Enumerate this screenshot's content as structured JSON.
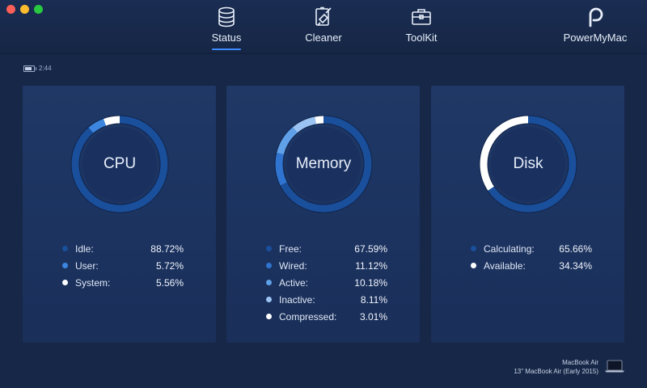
{
  "nav": {
    "tabs": [
      {
        "label": "Status",
        "icon": "database-icon"
      },
      {
        "label": "Cleaner",
        "icon": "broom-icon"
      },
      {
        "label": "ToolKit",
        "icon": "toolbox-icon"
      }
    ],
    "active_tab": "Status",
    "brand": "PowerMyMac"
  },
  "battery": {
    "time": "2:44",
    "level": 0.8
  },
  "cards": [
    {
      "title": "CPU",
      "items": [
        {
          "label": "Idle:",
          "value": "88.72%",
          "color": "#1a4f9c"
        },
        {
          "label": "User:",
          "value": "5.72%",
          "color": "#3d86e0"
        },
        {
          "label": "System:",
          "value": "5.56%",
          "color": "#ffffff"
        }
      ]
    },
    {
      "title": "Memory",
      "items": [
        {
          "label": "Free:",
          "value": "67.59%",
          "color": "#1a4f9c"
        },
        {
          "label": "Wired:",
          "value": "11.12%",
          "color": "#2f74d0"
        },
        {
          "label": "Active:",
          "value": "10.18%",
          "color": "#5fa0e8"
        },
        {
          "label": "Inactive:",
          "value": "8.11%",
          "color": "#9cc4f2"
        },
        {
          "label": "Compressed:",
          "value": "3.01%",
          "color": "#ffffff"
        }
      ]
    },
    {
      "title": "Disk",
      "items": [
        {
          "label": "Calculating:",
          "value": "65.66%",
          "color": "#1a4f9c"
        },
        {
          "label": "Available:",
          "value": "34.34%",
          "color": "#ffffff"
        }
      ]
    }
  ],
  "device": {
    "name": "MacBook Air",
    "model": "13\" MacBook Air (Early 2015)"
  }
}
